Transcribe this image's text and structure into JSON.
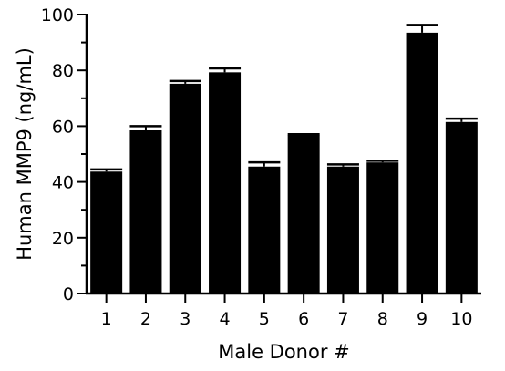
{
  "chart_data": {
    "type": "bar",
    "title": "",
    "xlabel": "Male Donor #",
    "ylabel": "Human MMP9 (ng/mL)",
    "categories": [
      "1",
      "2",
      "3",
      "4",
      "5",
      "6",
      "7",
      "8",
      "9",
      "10"
    ],
    "values": [
      43.7,
      58.5,
      75.2,
      79.3,
      45.5,
      56.8,
      45.5,
      47.0,
      93.5,
      61.5
    ],
    "error": [
      0.8,
      1.5,
      1.0,
      1.4,
      1.5,
      0.3,
      0.8,
      0.6,
      2.8,
      1.2
    ],
    "ylim": [
      0,
      100
    ],
    "yticks": [
      0,
      20,
      40,
      60,
      80,
      100
    ],
    "ytick_labels": [
      "0",
      "20",
      "40",
      "60",
      "80",
      "100"
    ],
    "grid": false,
    "legend": "none",
    "colors": {
      "bar": "#000000",
      "axis": "#000000",
      "background": "#ffffff"
    }
  }
}
